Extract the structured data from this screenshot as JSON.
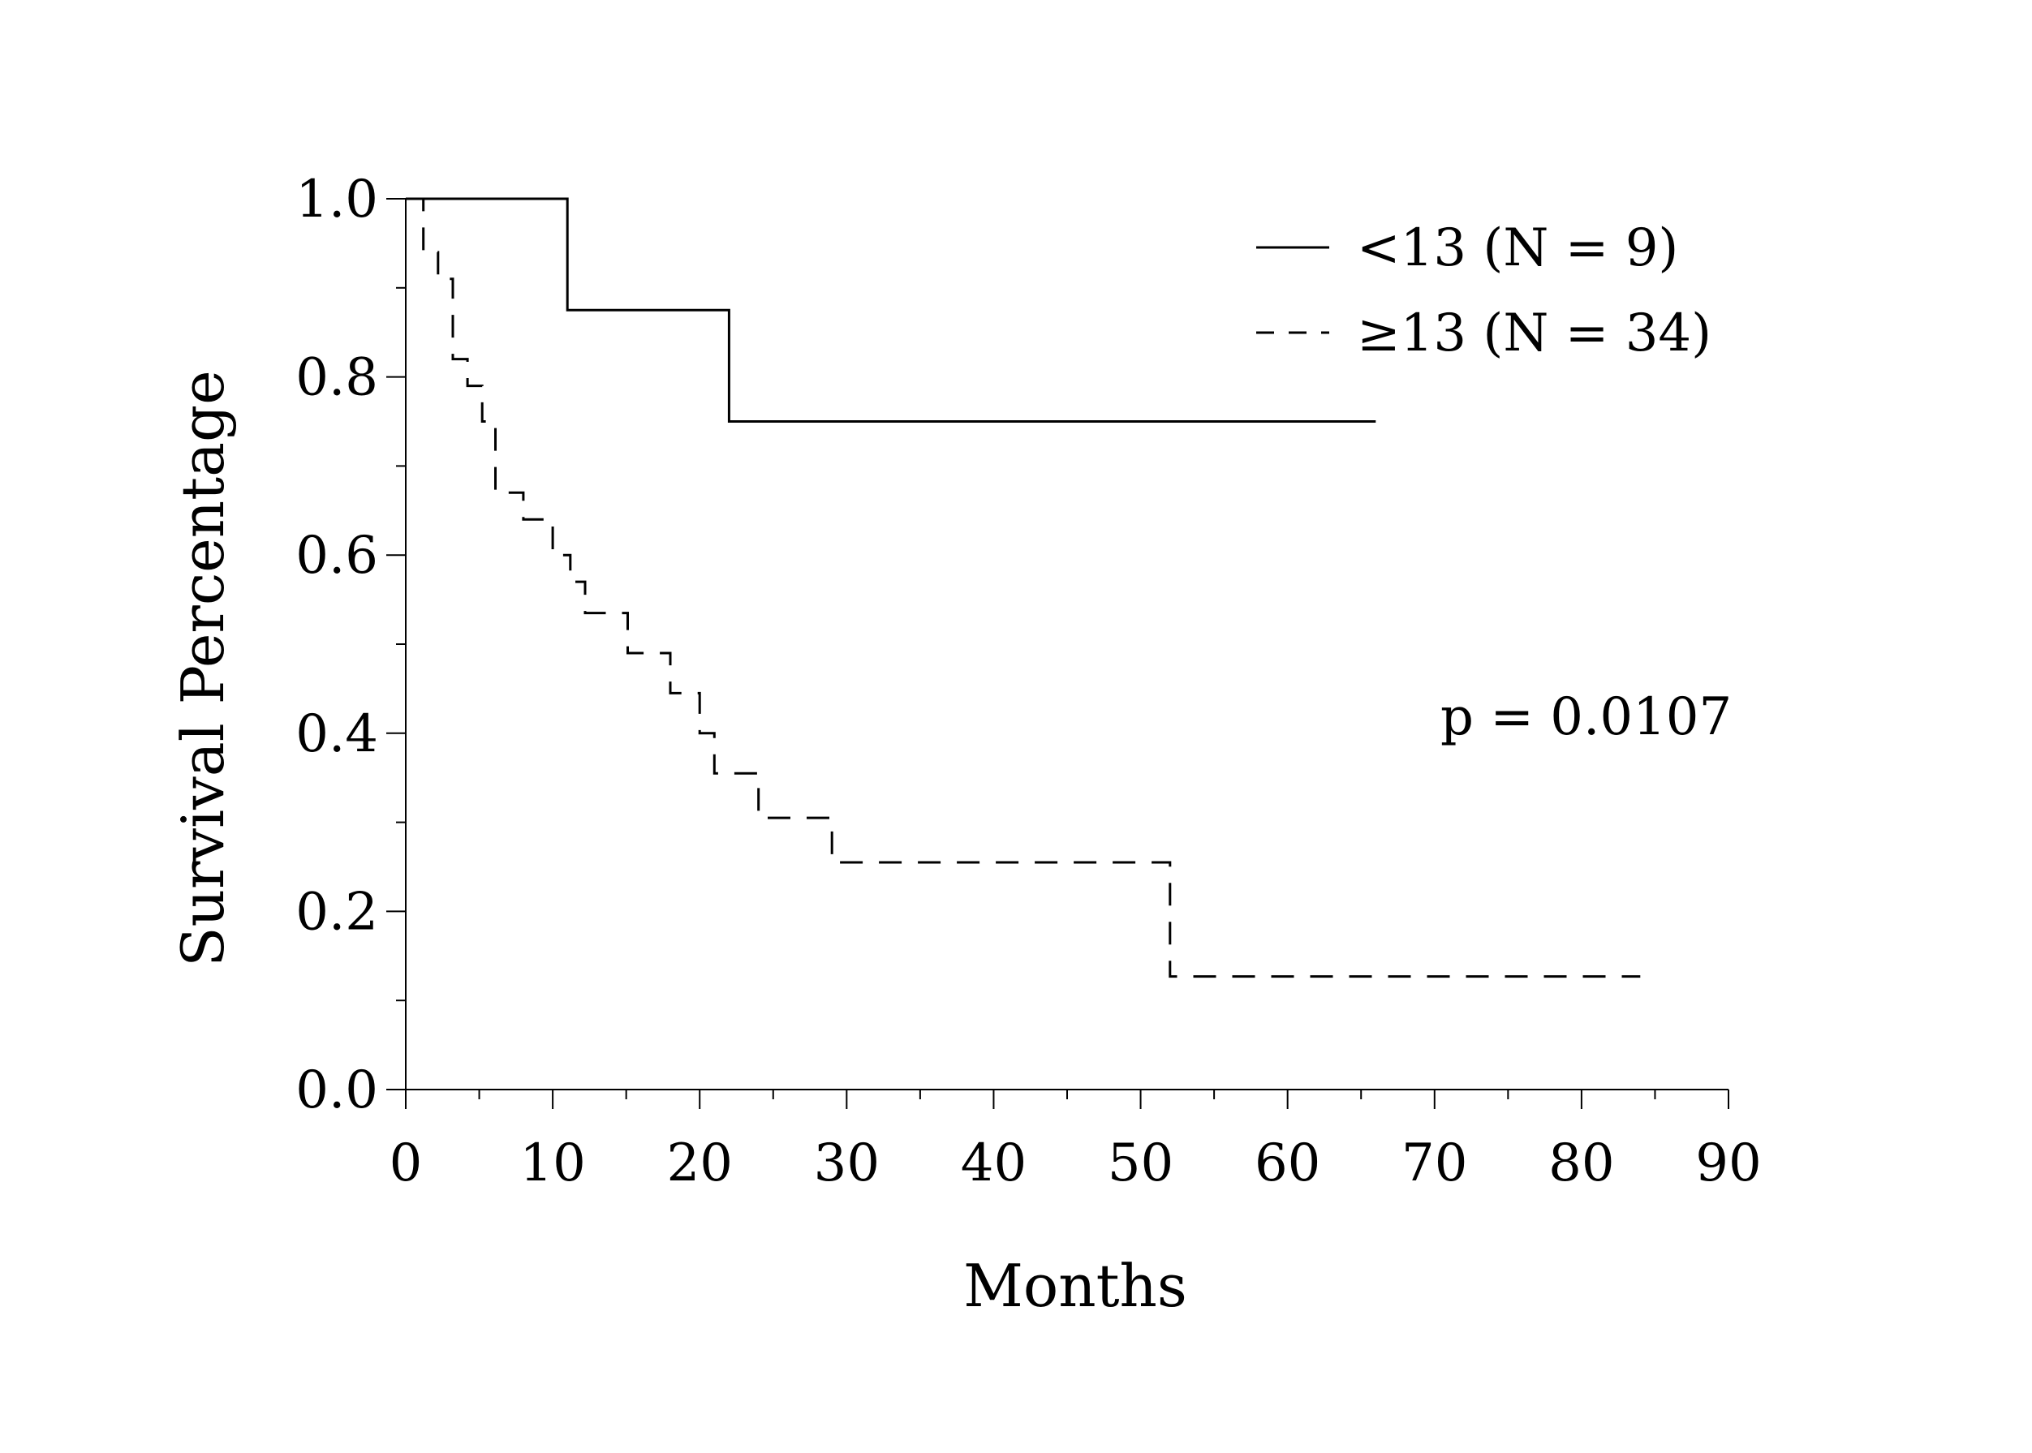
{
  "chart_data": {
    "type": "line",
    "xlabel": "Months",
    "ylabel": "Survival Percentage",
    "xlim": [
      0,
      90
    ],
    "ylim": [
      0.0,
      1.0
    ],
    "x_ticks": [
      "0",
      "10",
      "20",
      "30",
      "40",
      "50",
      "60",
      "70",
      "80",
      "90"
    ],
    "y_ticks": [
      "0.0",
      "0.2",
      "0.4",
      "0.6",
      "0.8",
      "1.0"
    ],
    "legend_position": "top-right",
    "annotation": "p = 0.0107",
    "series": [
      {
        "name": "<13 (N = 9)",
        "line_style": "solid",
        "step_points": [
          [
            0,
            1.0
          ],
          [
            11,
            1.0
          ],
          [
            11,
            0.875
          ],
          [
            22,
            0.875
          ],
          [
            22,
            0.75
          ],
          [
            66,
            0.75
          ]
        ]
      },
      {
        "name": "≥13 (N = 34)",
        "line_style": "dashed",
        "step_points": [
          [
            0.5,
            1.0
          ],
          [
            1.2,
            1.0
          ],
          [
            1.2,
            0.94
          ],
          [
            2.2,
            0.94
          ],
          [
            2.2,
            0.91
          ],
          [
            3.2,
            0.91
          ],
          [
            3.2,
            0.82
          ],
          [
            4.2,
            0.82
          ],
          [
            4.2,
            0.79
          ],
          [
            5.2,
            0.79
          ],
          [
            5.2,
            0.75
          ],
          [
            6.1,
            0.75
          ],
          [
            6.1,
            0.67
          ],
          [
            8.0,
            0.67
          ],
          [
            8.0,
            0.64
          ],
          [
            10.0,
            0.64
          ],
          [
            10.0,
            0.6
          ],
          [
            11.2,
            0.6
          ],
          [
            11.2,
            0.57
          ],
          [
            12.2,
            0.57
          ],
          [
            12.2,
            0.535
          ],
          [
            15.1,
            0.535
          ],
          [
            15.1,
            0.49
          ],
          [
            18.0,
            0.49
          ],
          [
            18.0,
            0.445
          ],
          [
            20.0,
            0.445
          ],
          [
            20.0,
            0.4
          ],
          [
            21.0,
            0.4
          ],
          [
            21.0,
            0.355
          ],
          [
            24.0,
            0.355
          ],
          [
            24.0,
            0.305
          ],
          [
            29.0,
            0.305
          ],
          [
            29.0,
            0.255
          ],
          [
            52.0,
            0.255
          ],
          [
            52.0,
            0.127
          ],
          [
            84.0,
            0.127
          ]
        ]
      }
    ]
  },
  "colors": {
    "line": "#000000",
    "background": "#ffffff"
  }
}
